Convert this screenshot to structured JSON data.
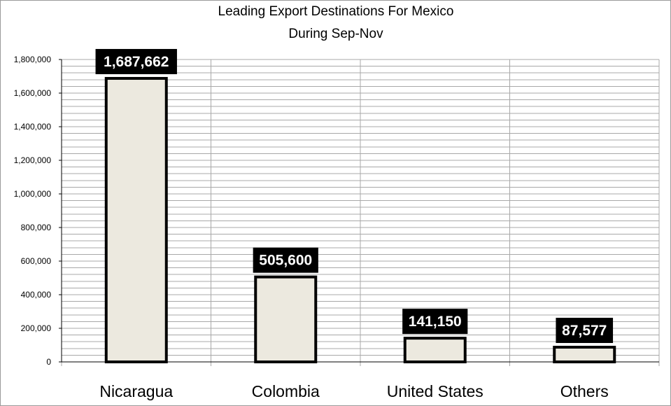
{
  "chart_data": {
    "type": "bar",
    "title_line1": "Leading Export Destinations For Mexico",
    "title_line2": "During Sep-Nov",
    "categories": [
      "Nicaragua",
      "Colombia",
      "United States",
      "Others"
    ],
    "values": [
      1687662,
      505600,
      141150,
      87577
    ],
    "data_labels": [
      "1,687,662",
      "505,600",
      "141,150",
      "87,577"
    ],
    "xlabel": "",
    "ylabel": "",
    "ylim": [
      0,
      1800000
    ],
    "y_ticks": [
      0,
      200000,
      400000,
      600000,
      800000,
      1000000,
      1200000,
      1400000,
      1600000,
      1800000
    ],
    "y_tick_labels": [
      "0",
      "200,000",
      "400,000",
      "600,000",
      "800,000",
      "1,000,000",
      "1,200,000",
      "1,400,000",
      "1,600,000",
      "1,800,000"
    ],
    "grid": true,
    "legend": "none",
    "colors": {
      "bar_fill": "#ece9df",
      "bar_stroke": "#000000",
      "label_bg": "#000000",
      "label_text": "#ffffff",
      "grid": "#a8a8a8"
    }
  }
}
